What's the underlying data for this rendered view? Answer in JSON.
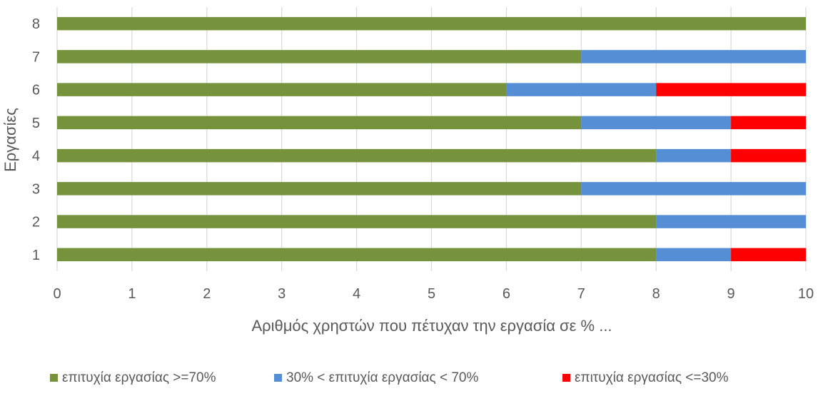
{
  "chart_data": {
    "type": "bar",
    "orientation": "horizontal",
    "stacked": true,
    "categories": [
      "1",
      "2",
      "3",
      "4",
      "5",
      "6",
      "7",
      "8"
    ],
    "series": [
      {
        "name": "επιτυχία εργασίας >=70%",
        "color": "#76923c",
        "values": [
          8,
          8,
          7,
          8,
          7,
          6,
          7,
          10
        ]
      },
      {
        "name": "30% < επιτυχία εργασίας < 70%",
        "color": "#558ed5",
        "values": [
          1,
          2,
          3,
          1,
          2,
          2,
          3,
          0
        ]
      },
      {
        "name": "επιτυχία εργασίας <=30%",
        "color": "#ff0000",
        "values": [
          1,
          0,
          0,
          1,
          1,
          2,
          0,
          0
        ]
      }
    ],
    "xlabel": "Αριθμός χρηστών που πέτυχαν την εργασία σε % ...",
    "ylabel": "Εργασίες",
    "xlim": [
      0,
      10
    ],
    "xticks": [
      "0",
      "1",
      "2",
      "3",
      "4",
      "5",
      "6",
      "7",
      "8",
      "9",
      "10"
    ],
    "grid": true,
    "legend_position": "bottom"
  }
}
